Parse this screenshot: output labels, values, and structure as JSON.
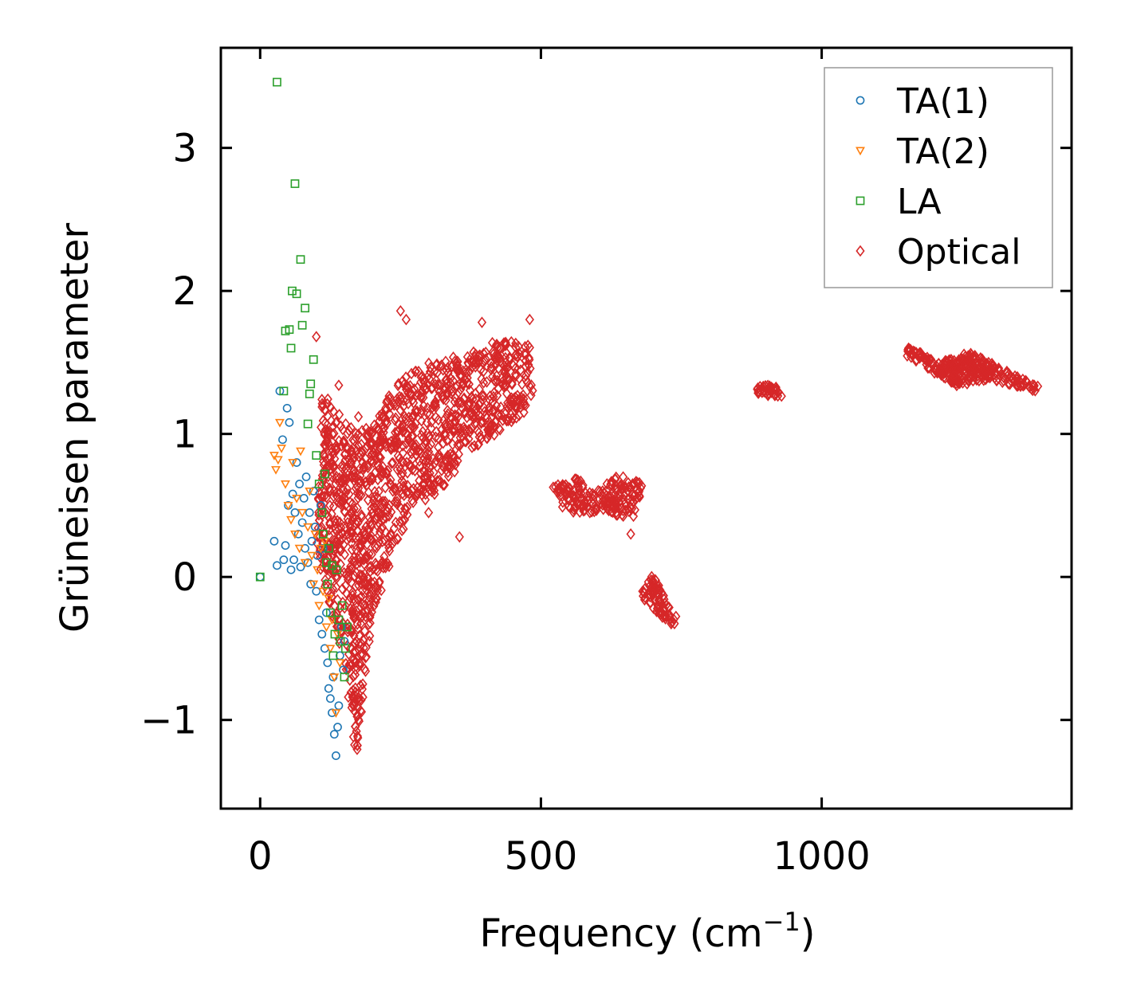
{
  "chart_data": {
    "type": "scatter",
    "title": "",
    "xlabel": "Frequency (cm",
    "xlabel_sup": "−1",
    "xlabel_end": ")",
    "ylabel": "Grüneisen parameter",
    "xlim": [
      -70,
      1445
    ],
    "ylim": [
      -1.62,
      3.7
    ],
    "xticks": [
      0,
      500,
      1000
    ],
    "xtick_labels": [
      "0",
      "500",
      "1000"
    ],
    "yticks": [
      -1,
      0,
      1,
      2,
      3
    ],
    "ytick_labels": [
      "−1",
      "0",
      "1",
      "2",
      "3"
    ],
    "legend_position": "top-right",
    "series": [
      {
        "name": "TA(1)",
        "marker": "circle",
        "color": "#1f77b4",
        "points": [
          [
            0,
            0
          ],
          [
            25,
            0.25
          ],
          [
            30,
            0.08
          ],
          [
            35,
            1.3
          ],
          [
            40,
            0.96
          ],
          [
            42,
            0.12
          ],
          [
            45,
            0.22
          ],
          [
            48,
            1.18
          ],
          [
            50,
            0.5
          ],
          [
            52,
            1.08
          ],
          [
            55,
            0.05
          ],
          [
            58,
            0.58
          ],
          [
            60,
            0.12
          ],
          [
            62,
            0.45
          ],
          [
            65,
            0.8
          ],
          [
            68,
            0.3
          ],
          [
            70,
            0.65
          ],
          [
            72,
            0.07
          ],
          [
            75,
            0.38
          ],
          [
            78,
            0.55
          ],
          [
            80,
            0.2
          ],
          [
            82,
            0.7
          ],
          [
            85,
            0.1
          ],
          [
            88,
            0.45
          ],
          [
            90,
            -0.05
          ],
          [
            92,
            0.25
          ],
          [
            95,
            0.6
          ],
          [
            98,
            0.35
          ],
          [
            100,
            -0.1
          ],
          [
            102,
            0.15
          ],
          [
            105,
            -0.3
          ],
          [
            108,
            0.5
          ],
          [
            110,
            -0.4
          ],
          [
            112,
            0.2
          ],
          [
            115,
            -0.5
          ],
          [
            118,
            -0.25
          ],
          [
            120,
            -0.6
          ],
          [
            122,
            -0.78
          ],
          [
            125,
            -0.85
          ],
          [
            128,
            -0.95
          ],
          [
            130,
            -0.7
          ],
          [
            132,
            -1.1
          ],
          [
            135,
            -1.25
          ],
          [
            138,
            -1.05
          ],
          [
            140,
            -0.9
          ],
          [
            142,
            -0.55
          ],
          [
            145,
            -0.35
          ],
          [
            148,
            -0.65
          ],
          [
            150,
            -0.45
          ]
        ]
      },
      {
        "name": "TA(2)",
        "marker": "triangle-down",
        "color": "#ff7f0e",
        "points": [
          [
            25,
            0.85
          ],
          [
            28,
            0.75
          ],
          [
            32,
            0.82
          ],
          [
            35,
            1.08
          ],
          [
            38,
            0.9
          ],
          [
            45,
            0.65
          ],
          [
            50,
            0.5
          ],
          [
            55,
            0.4
          ],
          [
            58,
            0.8
          ],
          [
            62,
            0.3
          ],
          [
            65,
            0.55
          ],
          [
            70,
            0.2
          ],
          [
            72,
            0.88
          ],
          [
            75,
            0.45
          ],
          [
            80,
            0.1
          ],
          [
            85,
            0.35
          ],
          [
            88,
            0.6
          ],
          [
            92,
            0.15
          ],
          [
            95,
            -0.05
          ],
          [
            98,
            0.3
          ],
          [
            102,
            0.05
          ],
          [
            105,
            -0.2
          ],
          [
            108,
            0.2
          ],
          [
            112,
            -0.1
          ],
          [
            115,
            0.25
          ],
          [
            118,
            -0.35
          ],
          [
            122,
            -0.15
          ],
          [
            125,
            -0.5
          ],
          [
            128,
            -0.3
          ],
          [
            132,
            -0.7
          ],
          [
            135,
            -0.95
          ],
          [
            138,
            -0.4
          ],
          [
            142,
            -0.6
          ]
        ]
      },
      {
        "name": "LA",
        "marker": "square",
        "color": "#2ca02c",
        "points": [
          [
            0,
            0
          ],
          [
            30,
            3.46
          ],
          [
            42,
            1.3
          ],
          [
            45,
            1.72
          ],
          [
            52,
            1.73
          ],
          [
            55,
            1.6
          ],
          [
            57,
            2.0
          ],
          [
            62,
            2.75
          ],
          [
            65,
            1.98
          ],
          [
            72,
            2.22
          ],
          [
            75,
            1.76
          ],
          [
            80,
            1.88
          ],
          [
            85,
            1.07
          ],
          [
            88,
            1.28
          ],
          [
            90,
            1.35
          ],
          [
            95,
            1.52
          ],
          [
            100,
            0.85
          ],
          [
            105,
            0.65
          ],
          [
            110,
            0.45
          ],
          [
            112,
            0.3
          ],
          [
            115,
            0.72
          ],
          [
            118,
            0.1
          ],
          [
            120,
            -0.05
          ],
          [
            122,
            0.2
          ],
          [
            125,
            -0.25
          ],
          [
            128,
            0.08
          ],
          [
            130,
            -0.55
          ],
          [
            133,
            -0.4
          ],
          [
            136,
            0.05
          ],
          [
            140,
            -0.3
          ],
          [
            143,
            -0.45
          ],
          [
            146,
            -0.2
          ],
          [
            150,
            -0.7
          ],
          [
            152,
            -0.5
          ],
          [
            155,
            -0.35
          ]
        ]
      },
      {
        "name": "Optical",
        "marker": "diamond",
        "color": "#d62728",
        "points": [],
        "regions": [
          {
            "poly": [
              [
                100,
                0.2
              ],
              [
                110,
                1.3
              ],
              [
                160,
                1.05
              ],
              [
                200,
                1.05
              ],
              [
                240,
                1.35
              ],
              [
                300,
                1.5
              ],
              [
                360,
                1.55
              ],
              [
                420,
                1.65
              ],
              [
                480,
                1.65
              ],
              [
                490,
                1.2
              ],
              [
                440,
                1.05
              ],
              [
                380,
                0.9
              ],
              [
                320,
                0.6
              ],
              [
                280,
                0.5
              ],
              [
                240,
                0.2
              ],
              [
                200,
                -0.3
              ],
              [
                170,
                -1.3
              ],
              [
                150,
                -0.6
              ],
              [
                130,
                -0.3
              ],
              [
                110,
                0.0
              ]
            ],
            "count": 1400
          },
          {
            "poly": [
              [
                520,
                0.63
              ],
              [
                570,
                0.7
              ],
              [
                600,
                0.55
              ],
              [
                600,
                0.45
              ],
              [
                560,
                0.45
              ],
              [
                530,
                0.5
              ]
            ],
            "count": 90
          },
          {
            "poly": [
              [
                600,
                0.6
              ],
              [
                640,
                0.72
              ],
              [
                680,
                0.65
              ],
              [
                670,
                0.42
              ],
              [
                630,
                0.42
              ],
              [
                605,
                0.48
              ]
            ],
            "count": 110
          },
          {
            "poly": [
              [
                680,
                -0.05
              ],
              [
                700,
                0.02
              ],
              [
                730,
                -0.18
              ],
              [
                745,
                -0.28
              ],
              [
                735,
                -0.36
              ],
              [
                700,
                -0.22
              ],
              [
                682,
                -0.15
              ]
            ],
            "count": 80
          },
          {
            "poly": [
              [
                880,
                1.32
              ],
              [
                900,
                1.35
              ],
              [
                935,
                1.31
              ],
              [
                930,
                1.26
              ],
              [
                900,
                1.27
              ],
              [
                882,
                1.29
              ]
            ],
            "count": 40
          },
          {
            "poly": [
              [
                1150,
                1.62
              ],
              [
                1210,
                1.5
              ],
              [
                1260,
                1.58
              ],
              [
                1320,
                1.47
              ],
              [
                1395,
                1.32
              ],
              [
                1380,
                1.3
              ],
              [
                1300,
                1.38
              ],
              [
                1240,
                1.33
              ],
              [
                1190,
                1.45
              ],
              [
                1150,
                1.55
              ]
            ],
            "count": 300
          }
        ],
        "outliers": [
          [
            250,
            1.86
          ],
          [
            260,
            1.8
          ],
          [
            395,
            1.78
          ],
          [
            480,
            1.8
          ],
          [
            175,
            1.12
          ],
          [
            140,
            1.34
          ],
          [
            100,
            1.68
          ],
          [
            660,
            0.3
          ],
          [
            355,
            0.28
          ],
          [
            300,
            0.45
          ]
        ]
      }
    ]
  }
}
